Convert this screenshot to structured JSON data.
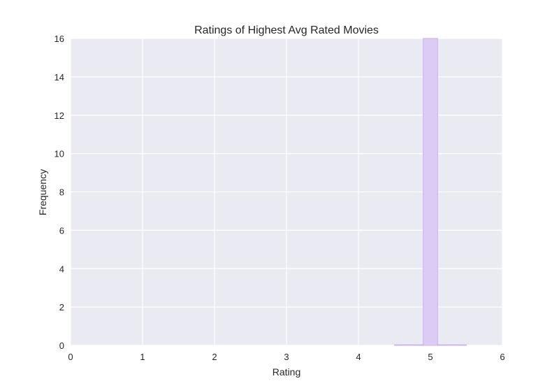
{
  "chart_data": {
    "type": "bar",
    "title": "Ratings of Highest Avg Rated Movies",
    "xlabel": "Rating",
    "ylabel": "Frequency",
    "xlim": [
      0,
      6
    ],
    "ylim": [
      0,
      16
    ],
    "x_ticks": [
      "0",
      "1",
      "2",
      "3",
      "4",
      "5",
      "6"
    ],
    "y_ticks": [
      "0",
      "2",
      "4",
      "6",
      "8",
      "10",
      "12",
      "14",
      "16"
    ],
    "grid": true,
    "bins": [
      {
        "x0": 4.5,
        "x1": 4.9,
        "count": 0
      },
      {
        "x0": 4.9,
        "x1": 5.1,
        "count": 16
      },
      {
        "x0": 5.1,
        "x1": 5.5,
        "count": 0
      }
    ],
    "colors": {
      "plot_background": "#eaeaf2",
      "grid": "#ffffff",
      "bar_fill": "#dccbf5",
      "bar_edge": "#c9aef2"
    }
  }
}
